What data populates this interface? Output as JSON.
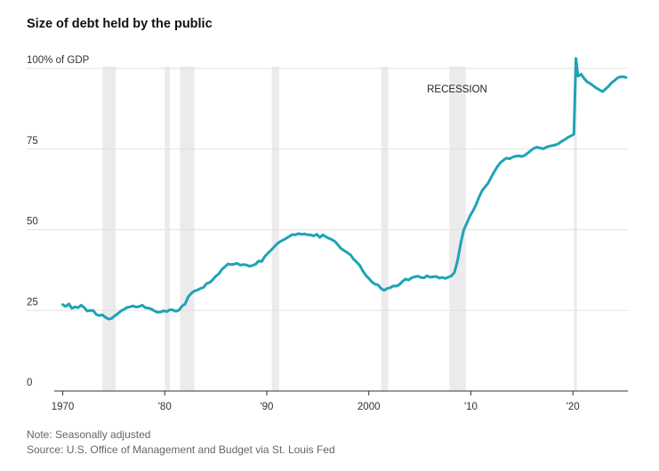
{
  "title": "Size of debt held by the public",
  "note": "Note: Seasonally adjusted",
  "source": "Source: U.S. Office of Management and Budget via St. Louis Fed",
  "chart_data": {
    "type": "line",
    "title": "Size of debt held by the public",
    "ylim": [
      0,
      100
    ],
    "xlim": [
      1970,
      2025.3
    ],
    "y_ticks": [
      {
        "value": 0,
        "label": "0"
      },
      {
        "value": 25,
        "label": "25"
      },
      {
        "value": 50,
        "label": "50"
      },
      {
        "value": 75,
        "label": "75"
      },
      {
        "value": 100,
        "label": "100% of GDP"
      }
    ],
    "x_ticks": [
      {
        "value": 1970,
        "label": "1970"
      },
      {
        "value": 1980,
        "label": "'80"
      },
      {
        "value": 1990,
        "label": "'90"
      },
      {
        "value": 2000,
        "label": "2000"
      },
      {
        "value": 2010,
        "label": "'10"
      },
      {
        "value": 2020,
        "label": "'20"
      }
    ],
    "grid": true,
    "line_color": "#1ea3b5",
    "recession_color": "#ebebeb",
    "recession_label": "RECESSION",
    "recessions": [
      [
        1973.9,
        1975.2
      ],
      [
        1980.0,
        1980.5
      ],
      [
        1981.5,
        1982.9
      ],
      [
        1990.5,
        1991.2
      ],
      [
        2001.2,
        2001.9
      ],
      [
        2007.9,
        2009.5
      ],
      [
        2020.1,
        2020.4
      ]
    ],
    "series": [
      {
        "x": [
          1970.0,
          1970.3,
          1970.6,
          1970.9,
          1971.2,
          1971.5,
          1971.8,
          1972.1,
          1972.4,
          1972.7,
          1973.0,
          1973.3,
          1973.6,
          1973.9,
          1974.2,
          1974.5,
          1974.8,
          1975.1,
          1975.4,
          1975.7,
          1976.0,
          1976.3,
          1976.6,
          1976.9,
          1977.2,
          1977.5,
          1977.8,
          1978.1,
          1978.4,
          1978.7,
          1979.0,
          1979.3,
          1979.6,
          1979.9,
          1980.2,
          1980.5,
          1980.8,
          1981.1,
          1981.4,
          1981.7,
          1982.0,
          1982.3,
          1982.6,
          1982.9,
          1983.2,
          1983.5,
          1983.8,
          1984.1,
          1984.4,
          1984.7,
          1985.0,
          1985.3,
          1985.6,
          1985.9,
          1986.2,
          1986.5,
          1986.8,
          1987.1,
          1987.4,
          1987.7,
          1988.0,
          1988.3,
          1988.6,
          1988.9,
          1989.2,
          1989.5,
          1989.8,
          1990.1,
          1990.4,
          1990.7,
          1991.0,
          1991.3,
          1991.6,
          1991.9,
          1992.2,
          1992.5,
          1992.8,
          1993.1,
          1993.4,
          1993.7,
          1994.0,
          1994.3,
          1994.6,
          1994.9,
          1995.2,
          1995.5,
          1995.8,
          1996.1,
          1996.4,
          1996.7,
          1997.0,
          1997.3,
          1997.6,
          1997.9,
          1998.2,
          1998.5,
          1998.8,
          1999.1,
          1999.4,
          1999.7,
          2000.0,
          2000.3,
          2000.6,
          2000.9,
          2001.2,
          2001.5,
          2001.8,
          2002.1,
          2002.4,
          2002.7,
          2003.0,
          2003.3,
          2003.6,
          2003.9,
          2004.2,
          2004.5,
          2004.8,
          2005.1,
          2005.4,
          2005.7,
          2006.0,
          2006.3,
          2006.6,
          2006.9,
          2007.2,
          2007.5,
          2007.8,
          2008.1,
          2008.4,
          2008.7,
          2009.0,
          2009.3,
          2009.6,
          2009.9,
          2010.2,
          2010.5,
          2010.8,
          2011.1,
          2011.4,
          2011.7,
          2012.0,
          2012.3,
          2012.6,
          2012.9,
          2013.2,
          2013.5,
          2013.8,
          2014.1,
          2014.4,
          2014.7,
          2015.0,
          2015.3,
          2015.6,
          2015.9,
          2016.2,
          2016.5,
          2016.8,
          2017.1,
          2017.4,
          2017.7,
          2018.0,
          2018.3,
          2018.6,
          2018.9,
          2019.2,
          2019.5,
          2019.8,
          2020.1,
          2020.3,
          2020.5,
          2020.8,
          2021.1,
          2021.4,
          2021.7,
          2022.0,
          2022.3,
          2022.6,
          2022.9,
          2023.2,
          2023.5,
          2023.8,
          2024.1,
          2024.4,
          2024.7,
          2025.0,
          2025.2
        ],
        "values": [
          26.8,
          26.2,
          27.0,
          25.6,
          26.1,
          25.8,
          26.6,
          25.9,
          24.8,
          25.0,
          24.9,
          23.7,
          23.4,
          23.6,
          22.8,
          22.3,
          22.5,
          23.3,
          24.0,
          24.8,
          25.3,
          25.9,
          26.1,
          26.4,
          26.0,
          26.2,
          26.6,
          25.8,
          25.7,
          25.4,
          24.8,
          24.4,
          24.5,
          24.9,
          24.6,
          25.2,
          25.1,
          24.7,
          25.1,
          26.3,
          27.0,
          29.2,
          30.3,
          31.0,
          31.3,
          31.8,
          32.1,
          33.3,
          33.6,
          34.5,
          35.6,
          36.3,
          37.7,
          38.5,
          39.4,
          39.2,
          39.3,
          39.6,
          39.0,
          39.2,
          39.1,
          38.7,
          38.9,
          39.3,
          40.3,
          40.1,
          41.7,
          42.7,
          43.6,
          44.6,
          45.6,
          46.3,
          46.8,
          47.3,
          47.9,
          48.5,
          48.4,
          48.8,
          48.6,
          48.7,
          48.4,
          48.4,
          48.1,
          48.6,
          47.6,
          48.4,
          47.8,
          47.3,
          46.9,
          46.3,
          45.2,
          44.1,
          43.5,
          42.9,
          42.2,
          40.9,
          40.0,
          39.0,
          37.3,
          35.9,
          34.9,
          33.8,
          33.1,
          32.9,
          31.8,
          31.2,
          31.8,
          32.0,
          32.6,
          32.5,
          33.0,
          34.0,
          34.7,
          34.4,
          35.1,
          35.4,
          35.6,
          35.2,
          35.1,
          35.7,
          35.3,
          35.4,
          35.5,
          35.0,
          35.2,
          34.9,
          35.3,
          35.7,
          36.8,
          40.4,
          45.7,
          49.9,
          52.0,
          54.2,
          55.8,
          57.7,
          60.1,
          62.1,
          63.3,
          64.5,
          66.3,
          68.0,
          69.6,
          70.8,
          71.6,
          72.2,
          72.0,
          72.5,
          72.8,
          72.9,
          72.7,
          73.1,
          73.8,
          74.6,
          75.3,
          75.6,
          75.3,
          75.1,
          75.6,
          75.9,
          76.1,
          76.3,
          76.7,
          77.4,
          77.9,
          78.6,
          79.1,
          79.6,
          103.1,
          97.6,
          98.2,
          96.9,
          95.8,
          95.3,
          94.6,
          93.9,
          93.4,
          92.8,
          93.6,
          94.5,
          95.6,
          96.3,
          97.1,
          97.4,
          97.4,
          97.2
        ]
      }
    ]
  }
}
